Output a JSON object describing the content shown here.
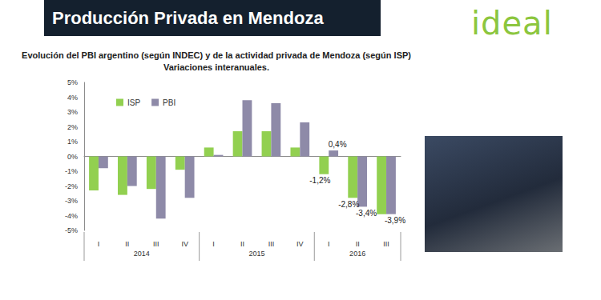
{
  "header": "Producción Privada en Mendoza",
  "logo": "ideal",
  "chart_data": {
    "type": "bar",
    "title": "Evolución del PBI argentino (según INDEC) y de la actividad privada de Mendoza (según ISP)",
    "subtitle": "Variaciones interanuales.",
    "categories": [
      "I",
      "II",
      "III",
      "IV",
      "I",
      "II",
      "III",
      "IV",
      "I",
      "II",
      "III"
    ],
    "category_groups": [
      {
        "label": "2014",
        "count": 4
      },
      {
        "label": "2015",
        "count": 4
      },
      {
        "label": "2016",
        "count": 3
      }
    ],
    "series": [
      {
        "name": "ISP",
        "color": "#92d050",
        "values": [
          -2.3,
          -2.6,
          -2.2,
          -0.9,
          0.6,
          1.7,
          1.7,
          0.6,
          -1.2,
          -2.8,
          -3.9
        ],
        "value_labels": [
          null,
          null,
          null,
          null,
          null,
          null,
          null,
          null,
          "-1,2%",
          "-2,8%",
          null
        ]
      },
      {
        "name": "PBI",
        "color": "#8e8aa8",
        "values": [
          -0.8,
          -2.0,
          -4.2,
          -2.8,
          0.1,
          3.8,
          3.6,
          2.3,
          0.4,
          -3.4,
          -3.9
        ],
        "value_labels": [
          null,
          null,
          null,
          null,
          null,
          null,
          null,
          null,
          "0,4%",
          "-3,4%",
          "-3,9%"
        ]
      }
    ],
    "ylim": [
      -5,
      5
    ],
    "yticks": [
      {
        "value": -5,
        "label": "-5%"
      },
      {
        "value": -4,
        "label": "-4%"
      },
      {
        "value": -3,
        "label": "-3%"
      },
      {
        "value": -2,
        "label": "-2%"
      },
      {
        "value": -1,
        "label": "-1%"
      },
      {
        "value": 0,
        "label": "0%"
      },
      {
        "value": 1,
        "label": "1%"
      },
      {
        "value": 2,
        "label": "2%"
      },
      {
        "value": 3,
        "label": "3%"
      },
      {
        "value": 4,
        "label": "4%"
      },
      {
        "value": 5,
        "label": "5%"
      }
    ],
    "grid": false,
    "legend": "top-left",
    "data_labels": true
  }
}
